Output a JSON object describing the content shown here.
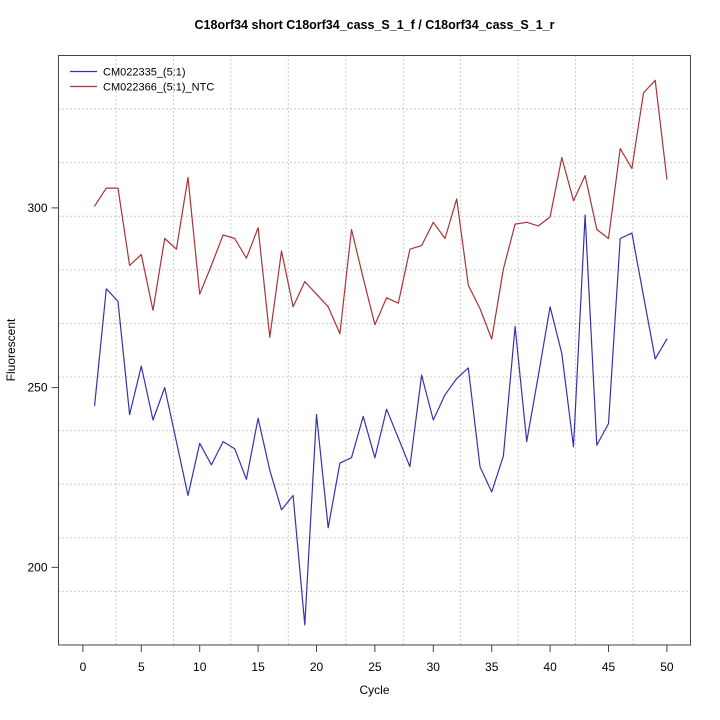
{
  "title": "C18orf34 short C18orf34_cass_S_1_f / C18orf34_cass_S_1_r",
  "axes": {
    "x_label": "Cycle",
    "y_label": "Fluorescent",
    "x_tick_labels": [
      "0",
      "5",
      "10",
      "15",
      "20",
      "25",
      "30",
      "35",
      "40",
      "45",
      "50"
    ],
    "y_tick_labels": [
      "200",
      "250",
      "300"
    ]
  },
  "legend": {
    "position": "top-left",
    "entries": [
      {
        "label": "CM022335_(5:1)",
        "color": "#3333AE"
      },
      {
        "label": "CM022366_(5:1)_NTC",
        "color": "#A93434"
      }
    ]
  },
  "colors": {
    "grid": "#999999",
    "frame": "#444444",
    "background": "#ffffff",
    "series_blue": "#3333AE",
    "series_red": "#A93434"
  },
  "chart_data": {
    "type": "line",
    "title": "C18orf34 short C18orf34_cass_S_1_f / C18orf34_cass_S_1_r",
    "xlabel": "Cycle",
    "ylabel": "Fluorescent",
    "x": [
      1,
      2,
      3,
      4,
      5,
      6,
      7,
      8,
      9,
      10,
      11,
      12,
      13,
      14,
      15,
      16,
      17,
      18,
      19,
      20,
      21,
      22,
      23,
      24,
      25,
      26,
      27,
      28,
      29,
      30,
      31,
      32,
      33,
      34,
      35,
      36,
      37,
      38,
      39,
      40,
      41,
      42,
      43,
      44,
      45,
      46,
      47,
      48,
      49,
      50
    ],
    "series": [
      {
        "name": "CM022335_(5:1)",
        "color": "#3333AE",
        "values": [
          245,
          277.5,
          274,
          242.5,
          256,
          241,
          250,
          235,
          220,
          234.5,
          228.5,
          235,
          233,
          224.5,
          241.5,
          227,
          216,
          220,
          184,
          242.5,
          211,
          229,
          230.5,
          242,
          230.5,
          244,
          236,
          228,
          253.5,
          241,
          248,
          252.5,
          255.5,
          228,
          221,
          231,
          267,
          235,
          253.5,
          272.5,
          259.5,
          233.5,
          298,
          234,
          240,
          291.5,
          293,
          275.5,
          258,
          263.5
        ]
      },
      {
        "name": "CM022366_(5:1)_NTC",
        "color": "#A93434",
        "values": [
          300.5,
          305.5,
          305.5,
          284,
          287,
          271.5,
          291.5,
          288.5,
          308.5,
          276,
          284,
          292.5,
          291.5,
          286,
          294.5,
          264,
          288,
          272.5,
          279.5,
          276,
          272.5,
          265,
          294,
          280.5,
          267.5,
          275,
          273.5,
          288.5,
          289.5,
          296,
          291.5,
          302.5,
          278.5,
          272,
          263.5,
          283,
          295.5,
          296,
          295,
          297.5,
          314,
          302,
          309,
          294,
          291.5,
          316.5,
          311,
          332,
          335.5,
          308
        ]
      }
    ],
    "xticks": [
      0,
      5,
      10,
      15,
      20,
      25,
      30,
      35,
      40,
      45,
      50
    ],
    "yticks": [
      200,
      250,
      300
    ],
    "xlim": [
      -2.09,
      52.02
    ],
    "ylim": [
      178.4,
      342.4
    ],
    "grid": {
      "on": true,
      "style": "dotted",
      "color": "#999999",
      "divisions": 11
    },
    "legend_position": "top-left"
  }
}
